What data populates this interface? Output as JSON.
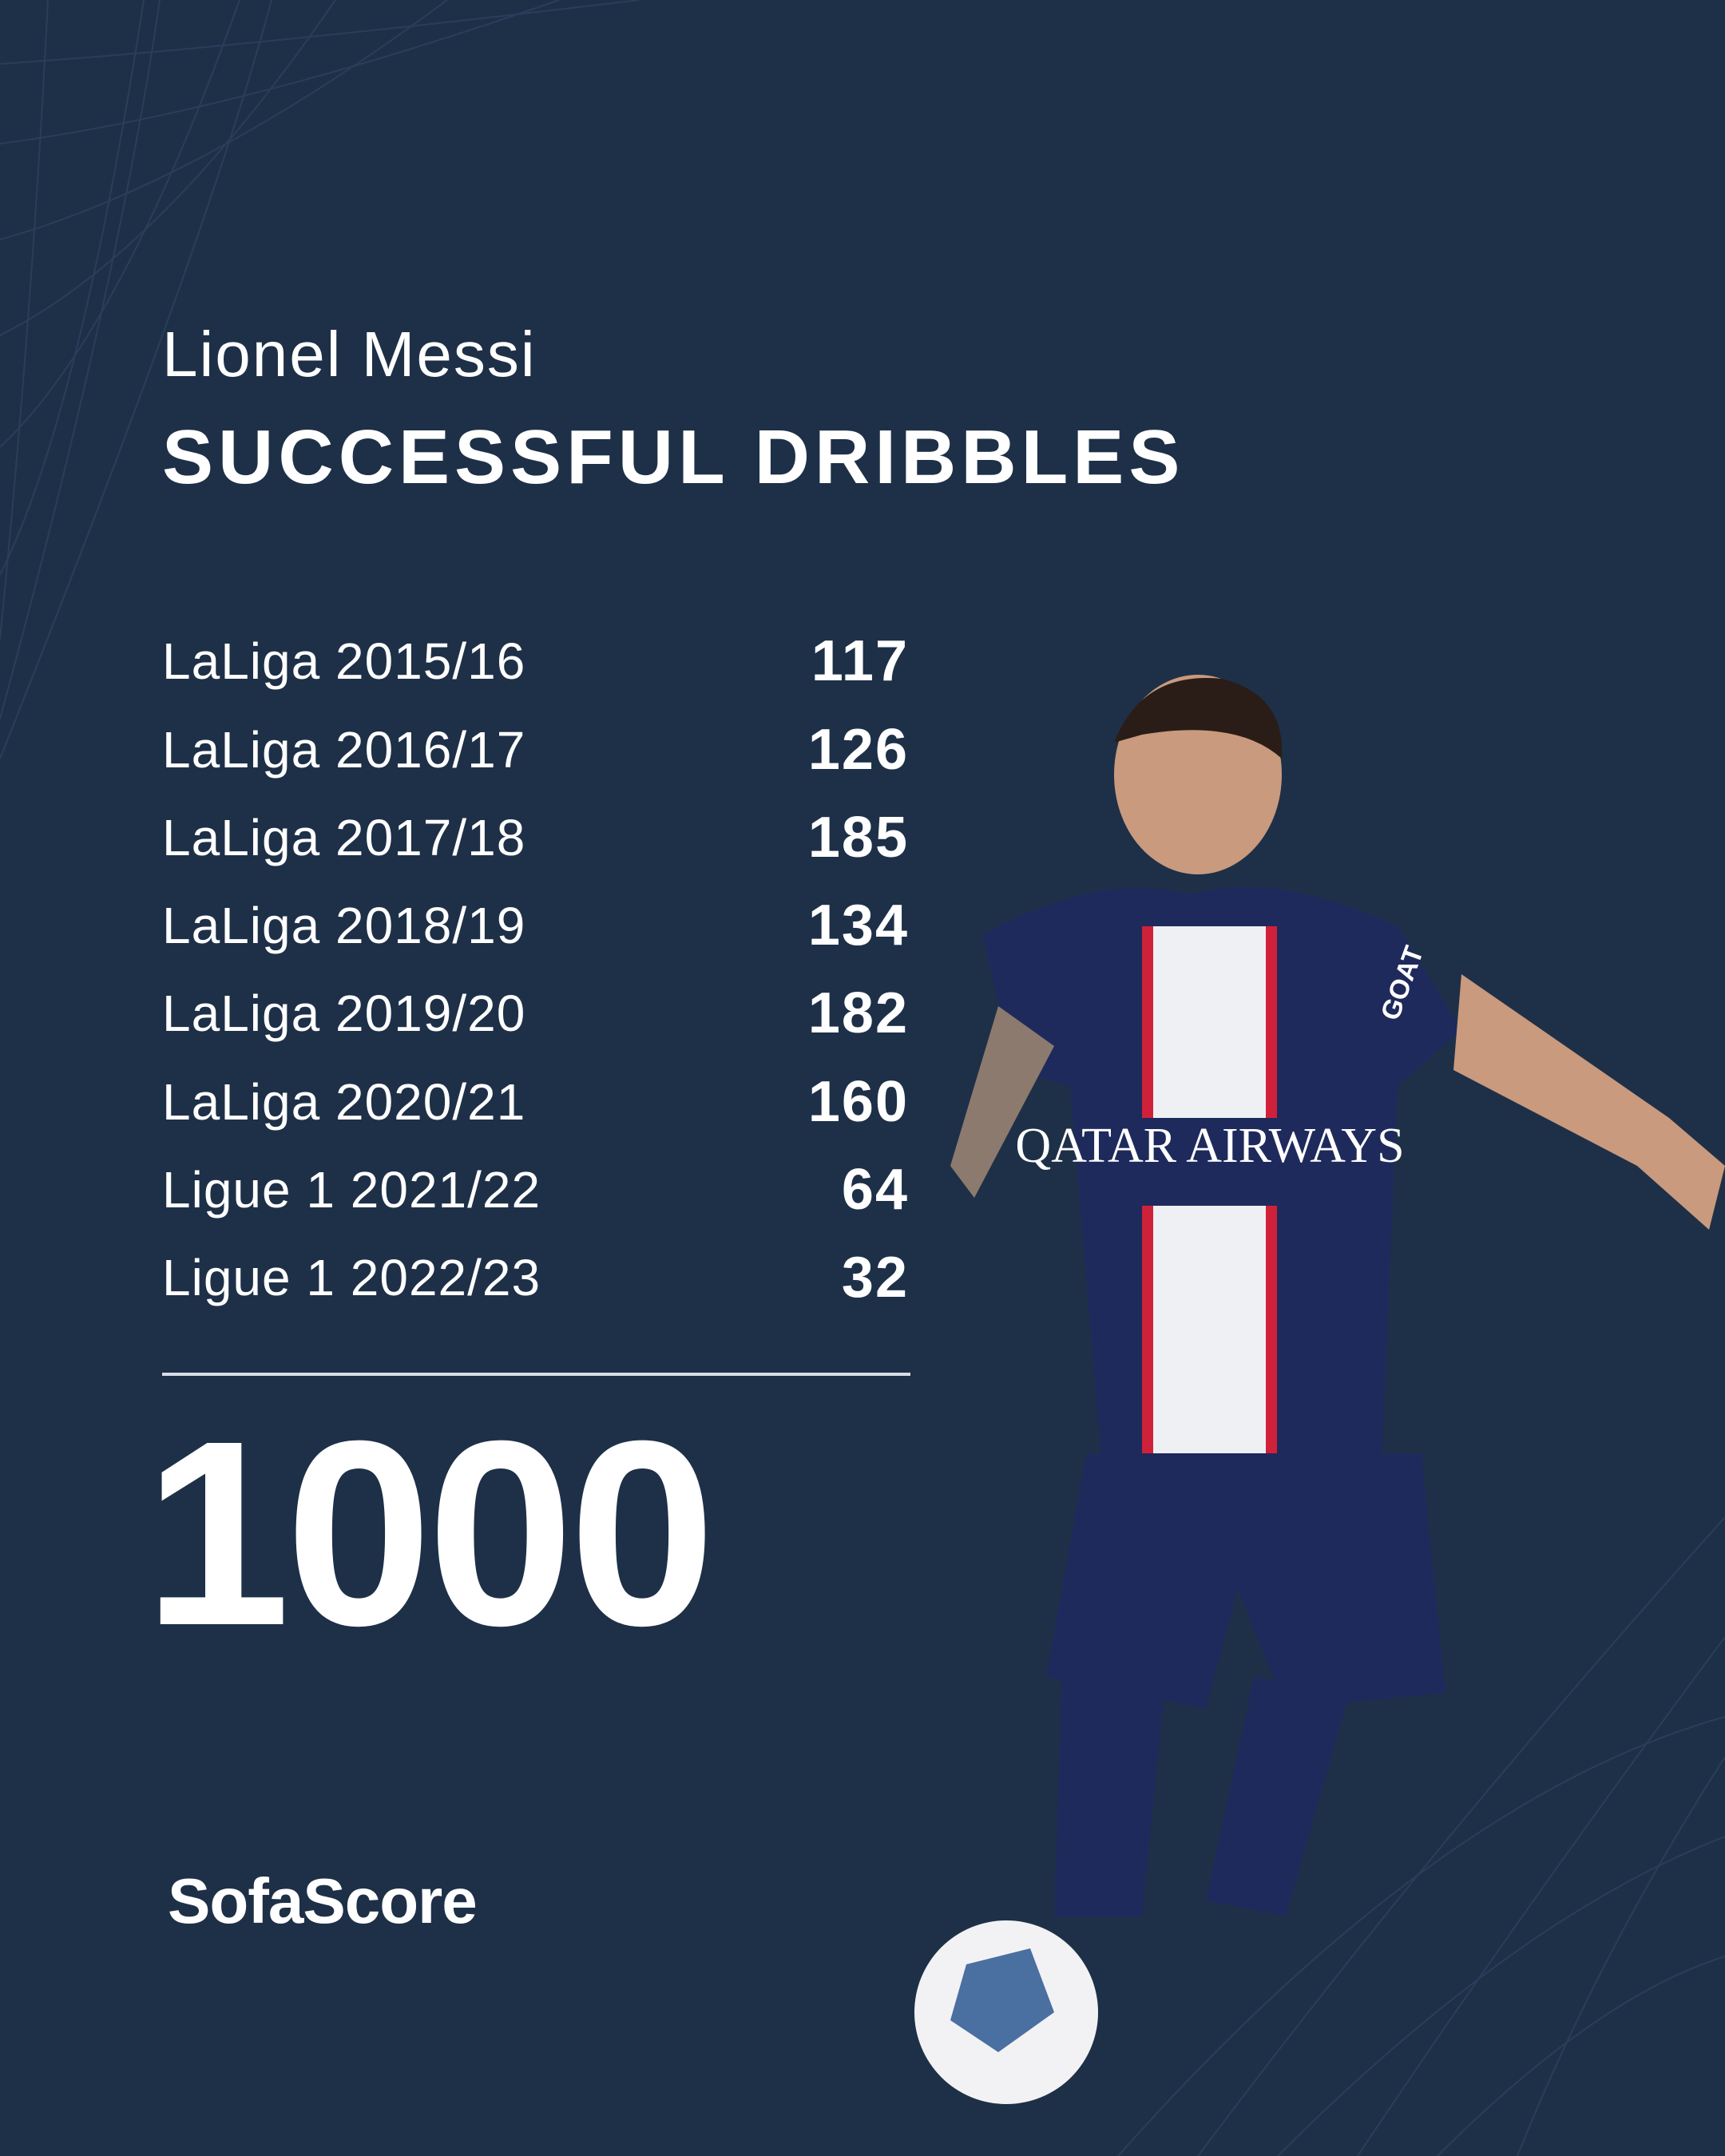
{
  "header": {
    "player_name": "Lionel Messi",
    "stat_title": "SUCCESSFUL DRIBBLES"
  },
  "rows": [
    {
      "season": "LaLiga 2015/16",
      "value": "117"
    },
    {
      "season": "LaLiga 2016/17",
      "value": "126"
    },
    {
      "season": "LaLiga 2017/18",
      "value": "185"
    },
    {
      "season": "LaLiga 2018/19",
      "value": "134"
    },
    {
      "season": "LaLiga 2019/20",
      "value": "182"
    },
    {
      "season": "LaLiga 2020/21",
      "value": "160"
    },
    {
      "season": "Ligue 1 2021/22",
      "value": "64"
    },
    {
      "season": "Ligue 1 2022/23",
      "value": "32"
    }
  ],
  "total": "1000",
  "brand": {
    "logo_text": "SofaScore"
  },
  "photo": {
    "shirt_sponsor": "QATAR AIRWAYS",
    "sleeve_text": "GOAT"
  },
  "colors": {
    "background": "#1e3048",
    "text": "#ffffff",
    "kit": "#1f2a5c",
    "kit_red": "#d0213a"
  }
}
